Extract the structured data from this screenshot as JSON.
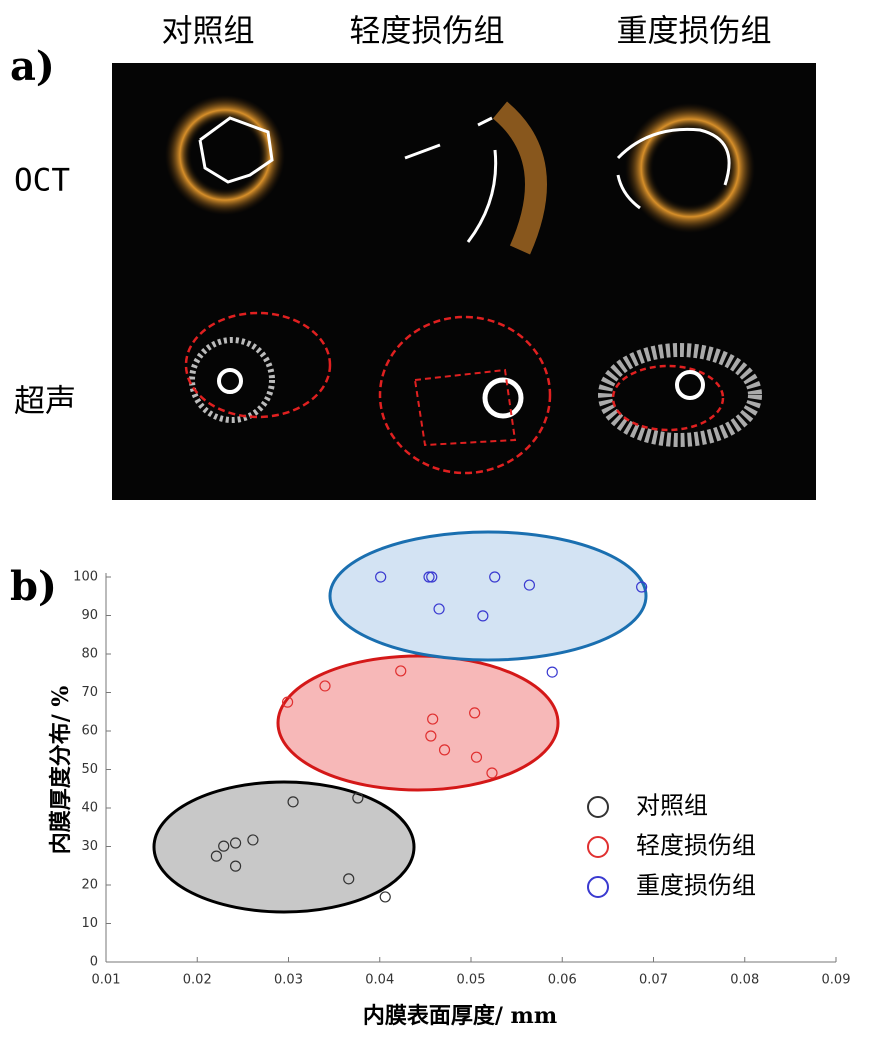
{
  "panel_a": {
    "label": "a)",
    "columns": [
      "对照组",
      "轻度损伤组",
      "重度损伤组"
    ],
    "rows": [
      "OCT",
      "超声"
    ]
  },
  "panel_b_label": "b)",
  "chart_data": {
    "type": "scatter",
    "xlabel": "内膜表面厚度/ mm",
    "ylabel": "内膜厚度分布/ %",
    "xlim": [
      0.01,
      0.09
    ],
    "xticks": [
      0.01,
      0.02,
      0.03,
      0.04,
      0.05,
      0.06,
      0.07,
      0.08,
      0.09
    ],
    "ylim": [
      0,
      100
    ],
    "yticks": [
      0,
      10,
      20,
      30,
      40,
      50,
      60,
      70,
      80,
      90,
      100
    ],
    "grid": false,
    "legend": "right",
    "series": [
      {
        "name": "对照组",
        "color": "#333333",
        "x": [
          0.0221,
          0.0229,
          0.0242,
          0.0242,
          0.0261,
          0.0305,
          0.0376,
          0.0366,
          0.0406
        ],
        "y": [
          27.5,
          30.1,
          30.9,
          24.9,
          31.7,
          41.6,
          42.6,
          21.6,
          16.9
        ]
      },
      {
        "name": "轻度损伤组",
        "color": "#e03030",
        "x": [
          0.0299,
          0.034,
          0.0423,
          0.0458,
          0.0456,
          0.0471,
          0.0504,
          0.0506,
          0.0523
        ],
        "y": [
          67.5,
          71.7,
          75.6,
          63.1,
          58.7,
          55.1,
          64.7,
          53.2,
          49.1
        ]
      },
      {
        "name": "重度损伤组",
        "color": "#3a3ad0",
        "x": [
          0.0401,
          0.0454,
          0.0457,
          0.0465,
          0.0513,
          0.0526,
          0.0564,
          0.0589,
          0.0687
        ],
        "y": [
          100,
          100,
          100,
          91.7,
          89.9,
          100,
          97.9,
          75.3,
          97.4
        ]
      }
    ]
  }
}
